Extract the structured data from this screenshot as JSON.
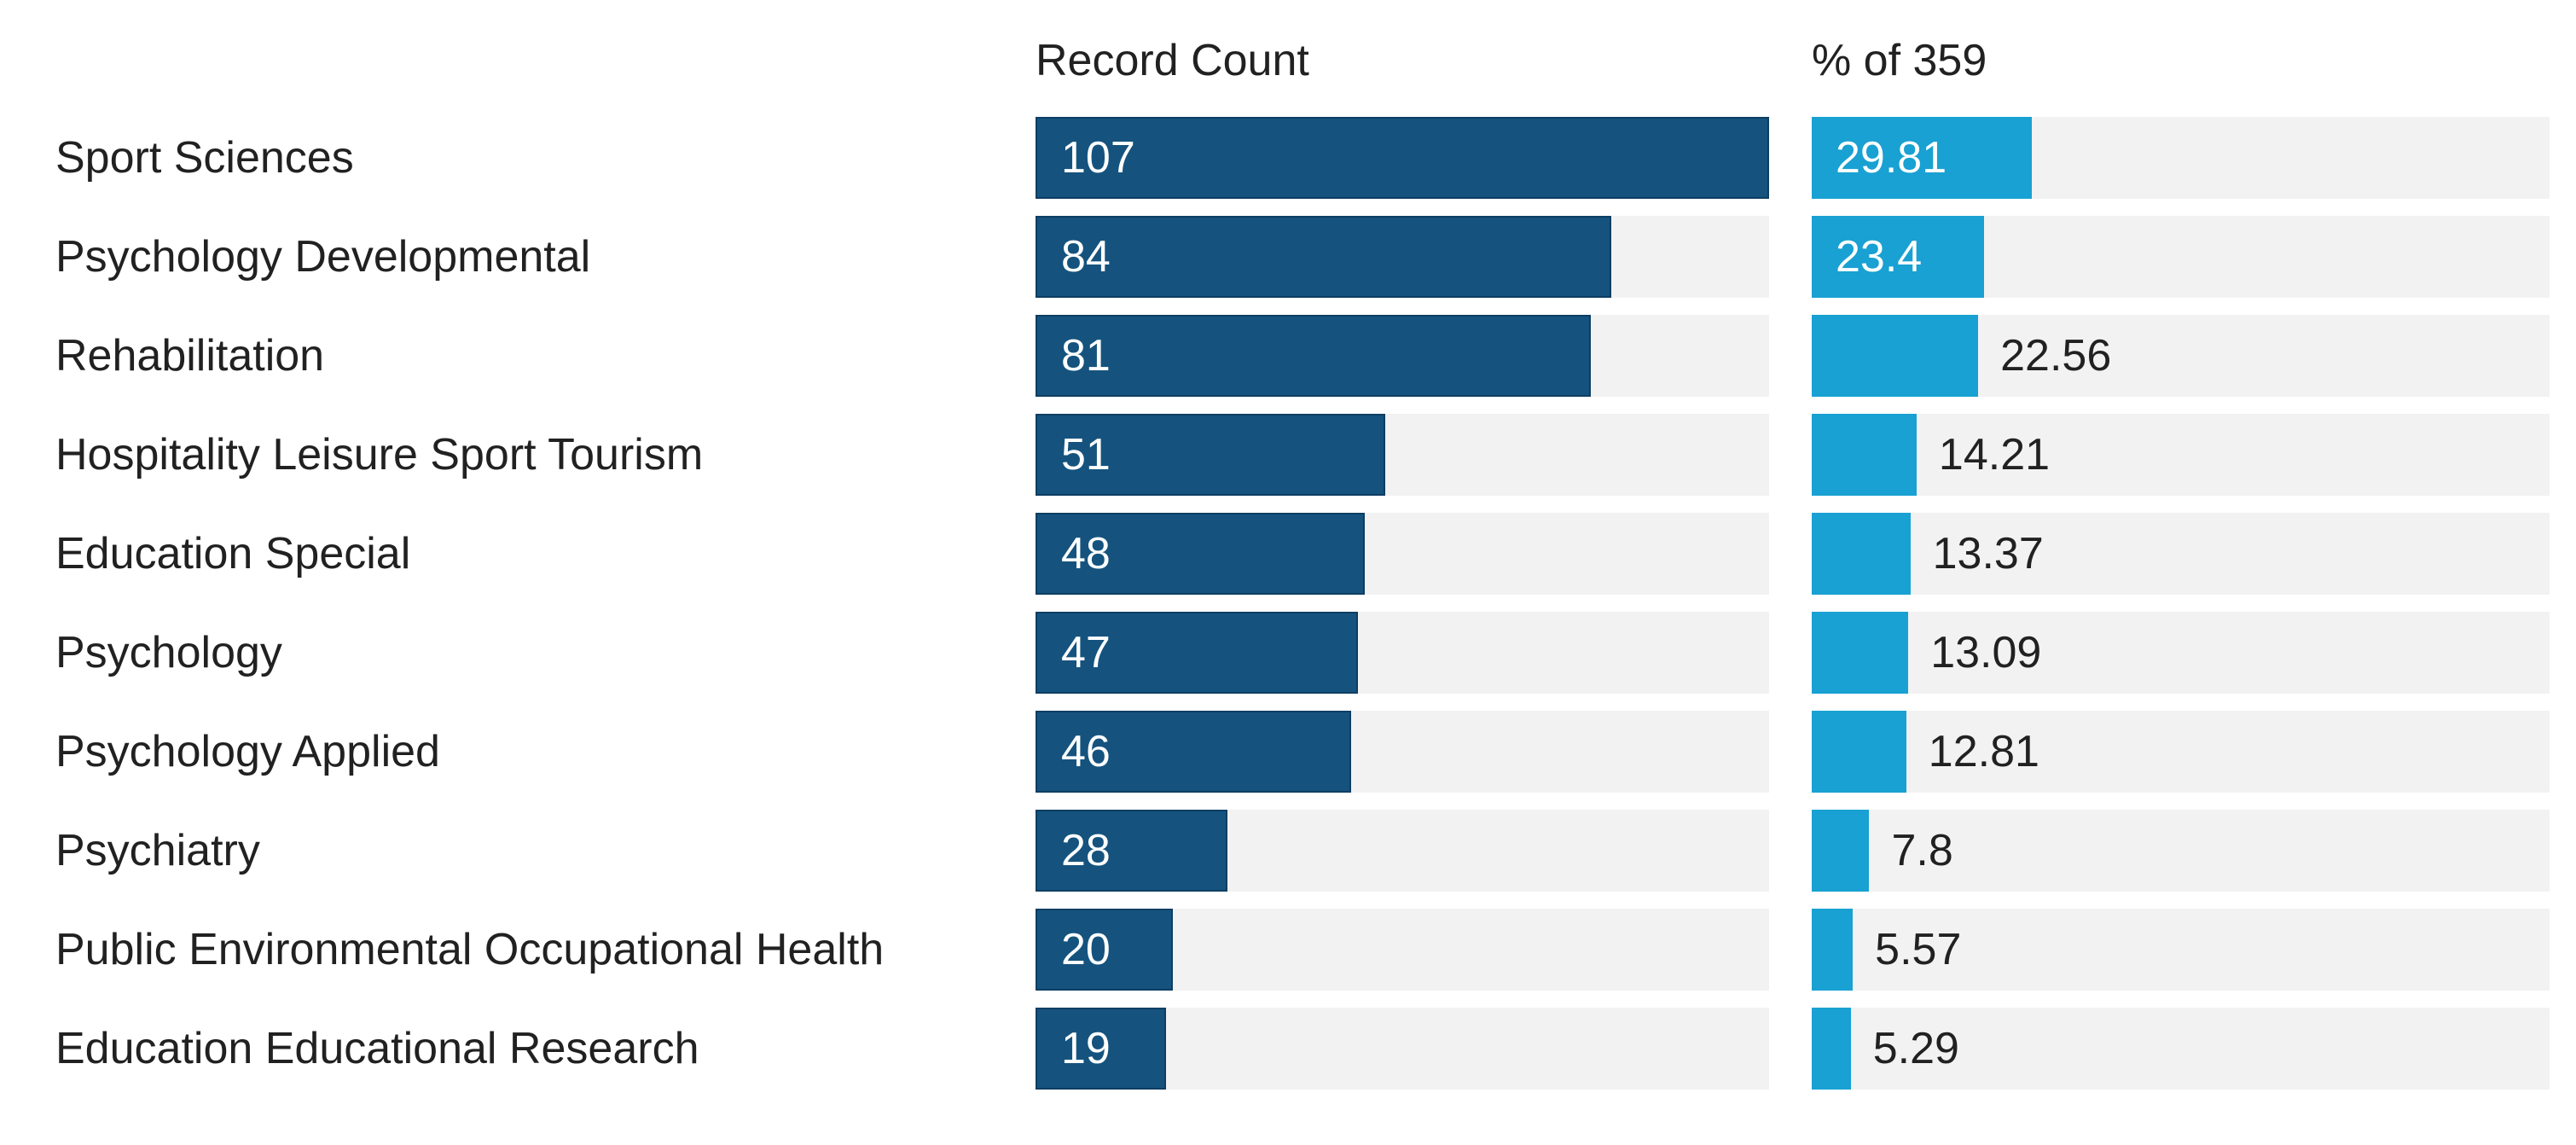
{
  "chart_data": {
    "type": "bar",
    "orientation": "horizontal",
    "columns": [
      "Record Count",
      "% of 359"
    ],
    "total_records": 359,
    "categories": [
      "Sport Sciences",
      "Psychology Developmental",
      "Rehabilitation",
      "Hospitality Leisure Sport Tourism",
      "Education Special",
      "Psychology",
      "Psychology Applied",
      "Psychiatry",
      "Public Environmental Occupational Health",
      "Education Educational Research"
    ],
    "series": [
      {
        "name": "Record Count",
        "values": [
          107,
          84,
          81,
          51,
          48,
          47,
          46,
          28,
          20,
          19
        ]
      },
      {
        "name": "% of 359",
        "values": [
          29.81,
          23.4,
          22.56,
          14.21,
          13.37,
          13.09,
          12.81,
          7.8,
          5.57,
          5.29
        ]
      }
    ],
    "axis": {
      "record_count_scale_max": 107,
      "percent_scale_max": 100
    },
    "layout": {
      "grid": false,
      "legend": "none",
      "value_labels": "on-bars"
    },
    "colors": {
      "record_count_bar": "#15537e",
      "record_count_bar_border": "#0e3e63",
      "percent_bar": "#18a1d2",
      "track": "#f2f2f2",
      "label_inside": "#ffffff",
      "label_outside": "#212121",
      "text": "#212121"
    }
  }
}
